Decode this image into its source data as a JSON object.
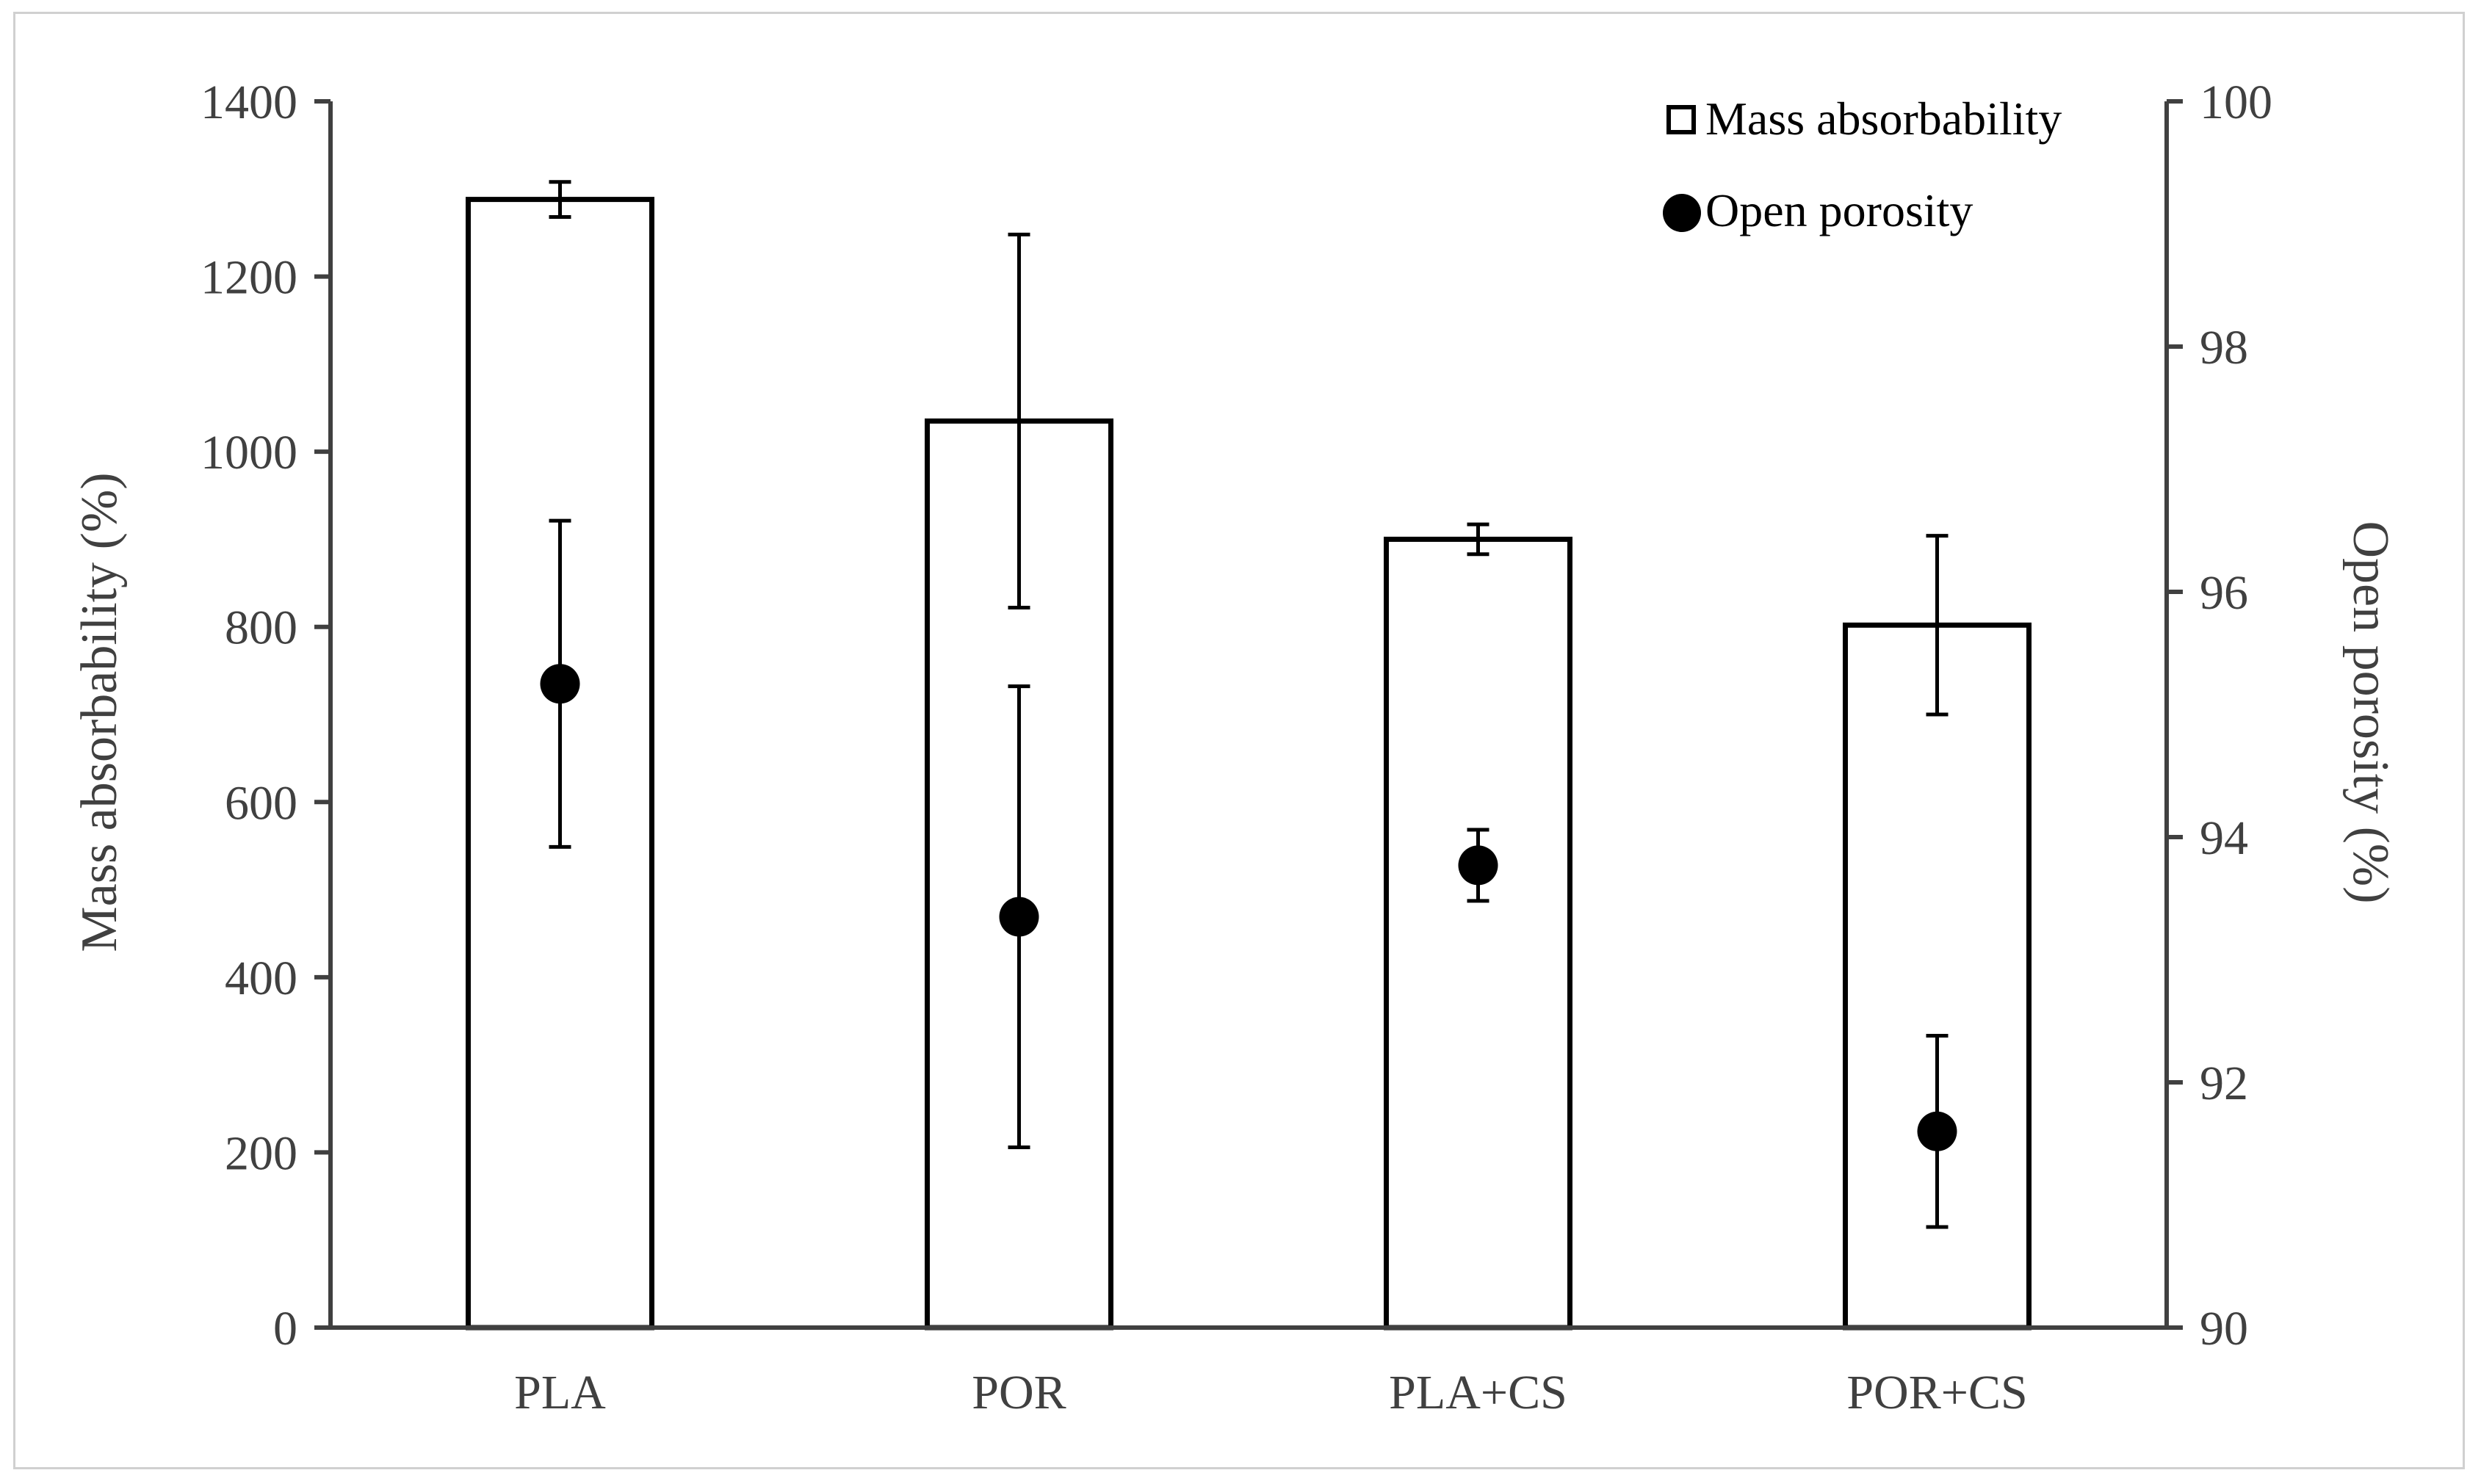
{
  "chart_data": {
    "type": "bar",
    "categories": [
      "PLA",
      "POR",
      "PLA+CS",
      "POR+CS"
    ],
    "series": [
      {
        "name": "Mass absorbability",
        "kind": "bar",
        "axis": "left",
        "values": [
          1288,
          1035,
          900,
          802
        ],
        "errors": [
          20,
          213,
          17,
          102
        ]
      },
      {
        "name": "Open porosity",
        "kind": "point",
        "axis": "right",
        "values": [
          95.25,
          93.35,
          93.77,
          91.6
        ],
        "errors": [
          1.33,
          1.88,
          0.29,
          0.78
        ]
      }
    ],
    "ylabel": "Mass absorbability (%)",
    "y2label": "Open porosity (%)",
    "ylim": [
      0,
      1400
    ],
    "yticks": [
      "0",
      "200",
      "400",
      "600",
      "800",
      "1000",
      "1200",
      "1400"
    ],
    "y2lim": [
      90,
      100
    ],
    "y2ticks": [
      "90",
      "92",
      "94",
      "96",
      "98",
      "100"
    ],
    "legend": {
      "position": "top-right",
      "entries": [
        "Mass absorbability",
        "Open porosity"
      ]
    },
    "colors": {
      "axis": "#404040",
      "bar_edge": "#000000",
      "bar_fill": "#ffffff",
      "marker": "#000000",
      "text": "#404040"
    }
  }
}
